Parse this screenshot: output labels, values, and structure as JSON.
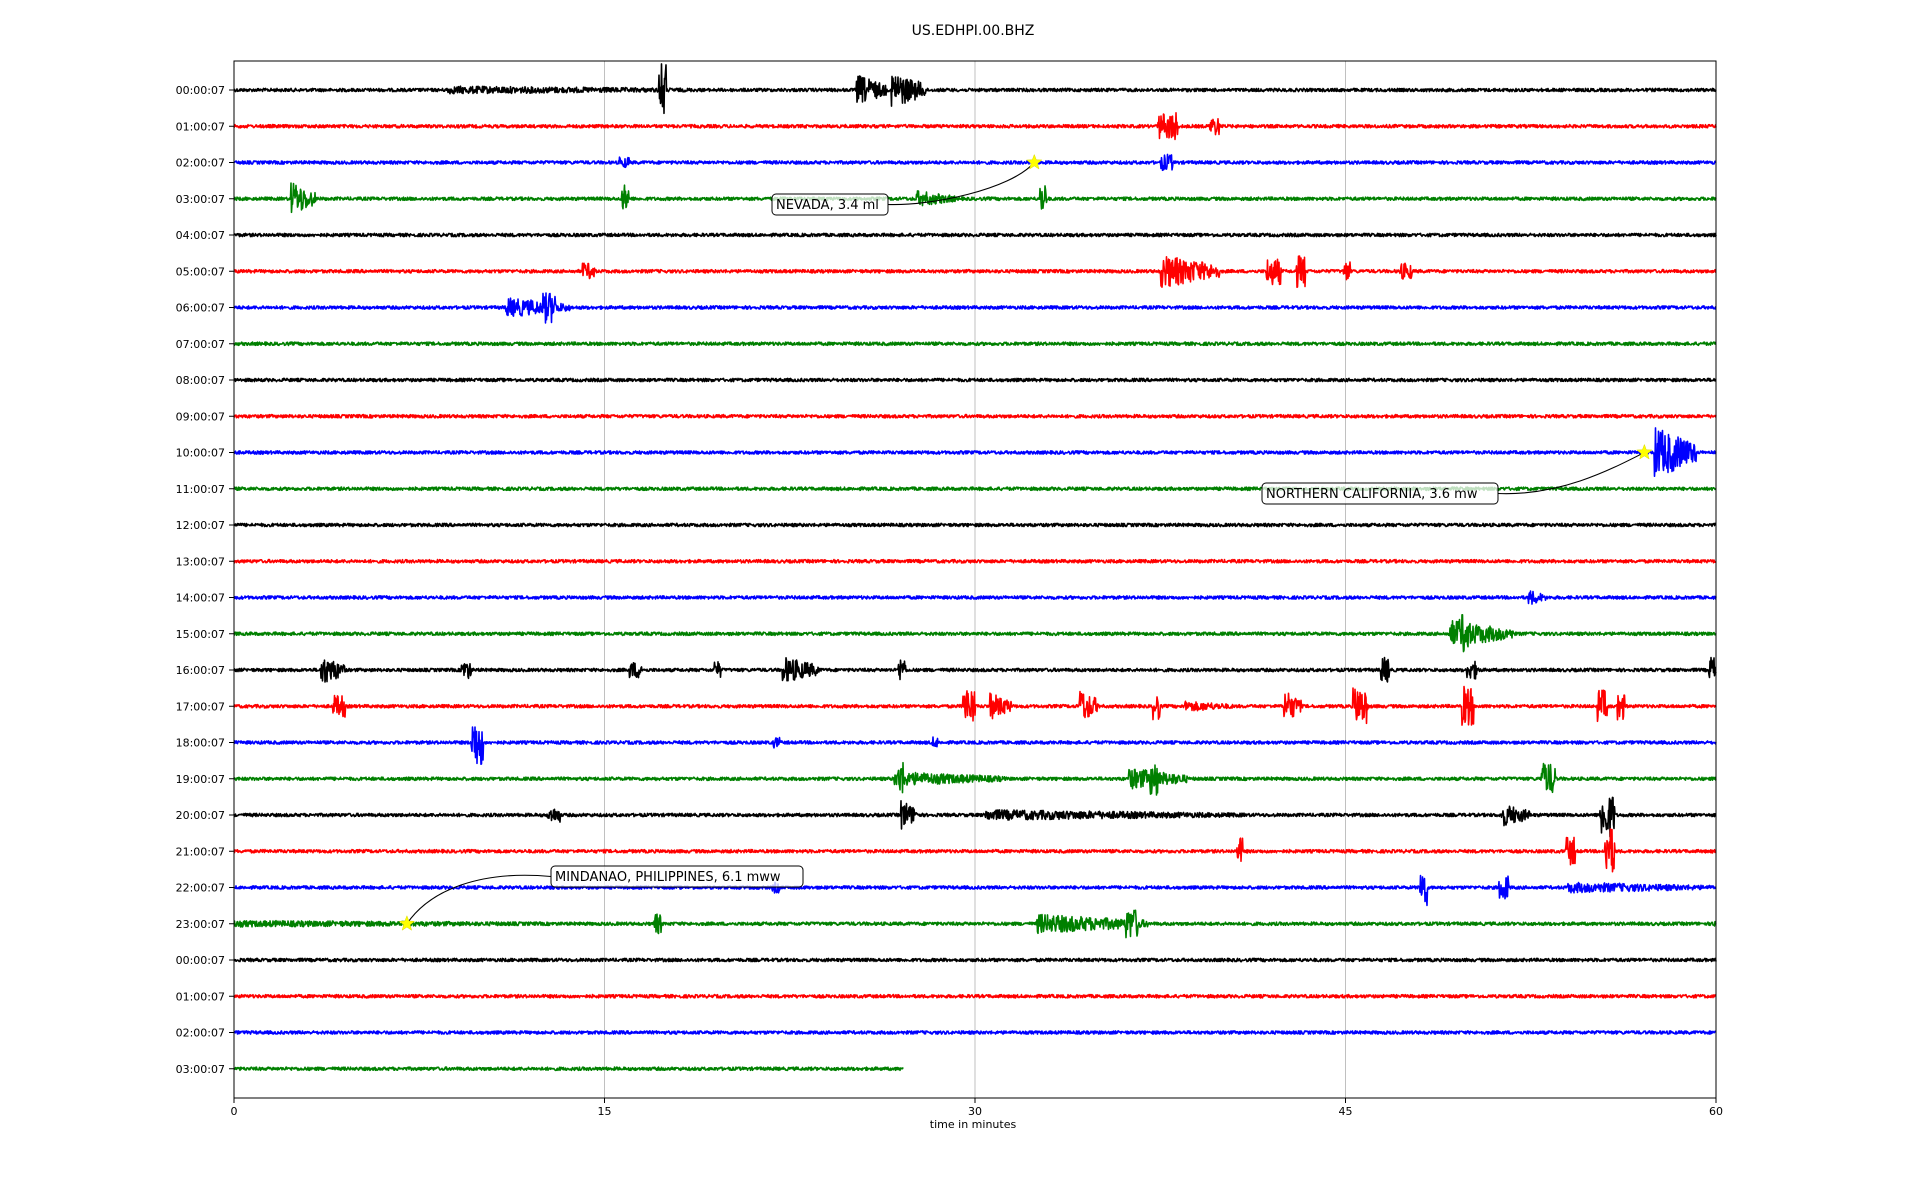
{
  "chart_data": {
    "type": "line",
    "title": "US.EDHPI.00.BHZ",
    "xlabel": "time in minutes",
    "xlim": [
      0,
      60
    ],
    "x_ticks": [
      0,
      15,
      30,
      45,
      60
    ],
    "grid": "vertical",
    "row_labels": [
      "00:00:07",
      "01:00:07",
      "02:00:07",
      "03:00:07",
      "04:00:07",
      "05:00:07",
      "06:00:07",
      "07:00:07",
      "08:00:07",
      "09:00:07",
      "10:00:07",
      "11:00:07",
      "12:00:07",
      "13:00:07",
      "14:00:07",
      "15:00:07",
      "16:00:07",
      "17:00:07",
      "18:00:07",
      "19:00:07",
      "20:00:07",
      "21:00:07",
      "22:00:07",
      "23:00:07",
      "00:00:07",
      "01:00:07",
      "02:00:07",
      "03:00:07"
    ],
    "colors": [
      "#000000",
      "#ff0000",
      "#0000ff",
      "#008000"
    ],
    "trace_end_minutes": [
      60,
      60,
      60,
      60,
      60,
      60,
      60,
      60,
      60,
      60,
      60,
      60,
      60,
      60,
      60,
      60,
      60,
      60,
      60,
      60,
      60,
      60,
      60,
      60,
      60,
      60,
      60,
      27.1
    ],
    "bursts": [
      {
        "row": 0,
        "t": 8.6,
        "dur": 11.5,
        "amp": 0.22
      },
      {
        "row": 0,
        "t": 17.2,
        "dur": 0.3,
        "amp": 1.5
      },
      {
        "row": 0,
        "t": 25.2,
        "dur": 1.2,
        "amp": 0.85
      },
      {
        "row": 0,
        "t": 26.6,
        "dur": 1.4,
        "amp": 1.0
      },
      {
        "row": 1,
        "t": 37.4,
        "dur": 0.6,
        "amp": 0.7
      },
      {
        "row": 1,
        "t": 37.9,
        "dur": 0.3,
        "amp": 0.85
      },
      {
        "row": 1,
        "t": 39.5,
        "dur": 0.4,
        "amp": 0.5
      },
      {
        "row": 2,
        "t": 15.6,
        "dur": 0.4,
        "amp": 0.3
      },
      {
        "row": 2,
        "t": 37.5,
        "dur": 0.5,
        "amp": 0.45
      },
      {
        "row": 3,
        "t": 2.3,
        "dur": 1.0,
        "amp": 0.95
      },
      {
        "row": 3,
        "t": 15.7,
        "dur": 0.3,
        "amp": 0.75
      },
      {
        "row": 3,
        "t": 27.6,
        "dur": 1.6,
        "amp": 0.45
      },
      {
        "row": 3,
        "t": 32.6,
        "dur": 0.3,
        "amp": 0.8
      },
      {
        "row": 5,
        "t": 14.1,
        "dur": 0.5,
        "amp": 0.45
      },
      {
        "row": 5,
        "t": 37.5,
        "dur": 2.4,
        "amp": 0.95
      },
      {
        "row": 5,
        "t": 41.8,
        "dur": 0.6,
        "amp": 0.75
      },
      {
        "row": 5,
        "t": 43.0,
        "dur": 0.4,
        "amp": 0.9
      },
      {
        "row": 5,
        "t": 44.9,
        "dur": 0.3,
        "amp": 0.55
      },
      {
        "row": 5,
        "t": 47.2,
        "dur": 0.5,
        "amp": 0.45
      },
      {
        "row": 6,
        "t": 11.0,
        "dur": 2.6,
        "amp": 0.55
      },
      {
        "row": 6,
        "t": 12.5,
        "dur": 0.5,
        "amp": 0.85
      },
      {
        "row": 10,
        "t": 57.5,
        "dur": 1.7,
        "amp": 1.45
      },
      {
        "row": 14,
        "t": 52.4,
        "dur": 0.7,
        "amp": 0.45
      },
      {
        "row": 15,
        "t": 49.2,
        "dur": 2.6,
        "amp": 0.75
      },
      {
        "row": 15,
        "t": 49.6,
        "dur": 0.4,
        "amp": 1.1
      },
      {
        "row": 16,
        "t": 3.5,
        "dur": 1.0,
        "amp": 0.85
      },
      {
        "row": 16,
        "t": 9.2,
        "dur": 0.4,
        "amp": 0.5
      },
      {
        "row": 16,
        "t": 16.0,
        "dur": 0.5,
        "amp": 0.45
      },
      {
        "row": 16,
        "t": 19.4,
        "dur": 0.3,
        "amp": 0.45
      },
      {
        "row": 16,
        "t": 22.2,
        "dur": 1.5,
        "amp": 0.75
      },
      {
        "row": 16,
        "t": 26.9,
        "dur": 0.3,
        "amp": 0.65
      },
      {
        "row": 16,
        "t": 46.4,
        "dur": 0.4,
        "amp": 0.7
      },
      {
        "row": 16,
        "t": 49.9,
        "dur": 0.5,
        "amp": 0.5
      },
      {
        "row": 16,
        "t": 59.7,
        "dur": 0.3,
        "amp": 0.7
      },
      {
        "row": 17,
        "t": 4.0,
        "dur": 0.5,
        "amp": 0.6
      },
      {
        "row": 17,
        "t": 29.5,
        "dur": 0.5,
        "amp": 1.0
      },
      {
        "row": 17,
        "t": 30.6,
        "dur": 0.9,
        "amp": 0.75
      },
      {
        "row": 17,
        "t": 34.2,
        "dur": 0.8,
        "amp": 1.0
      },
      {
        "row": 17,
        "t": 37.2,
        "dur": 0.3,
        "amp": 0.75
      },
      {
        "row": 17,
        "t": 38.5,
        "dur": 2.0,
        "amp": 0.3
      },
      {
        "row": 17,
        "t": 42.5,
        "dur": 0.7,
        "amp": 0.95
      },
      {
        "row": 17,
        "t": 45.3,
        "dur": 0.6,
        "amp": 1.0
      },
      {
        "row": 17,
        "t": 49.7,
        "dur": 0.5,
        "amp": 1.1
      },
      {
        "row": 17,
        "t": 55.2,
        "dur": 0.4,
        "amp": 0.9
      },
      {
        "row": 17,
        "t": 56.0,
        "dur": 0.3,
        "amp": 0.75
      },
      {
        "row": 18,
        "t": 9.6,
        "dur": 0.5,
        "amp": 1.3
      },
      {
        "row": 18,
        "t": 21.8,
        "dur": 0.3,
        "amp": 0.3
      },
      {
        "row": 18,
        "t": 28.2,
        "dur": 0.3,
        "amp": 0.3
      },
      {
        "row": 19,
        "t": 26.7,
        "dur": 4.5,
        "amp": 0.4
      },
      {
        "row": 19,
        "t": 26.9,
        "dur": 0.3,
        "amp": 0.95
      },
      {
        "row": 19,
        "t": 36.2,
        "dur": 2.4,
        "amp": 0.6
      },
      {
        "row": 19,
        "t": 37.1,
        "dur": 0.3,
        "amp": 1.0
      },
      {
        "row": 19,
        "t": 52.9,
        "dur": 0.6,
        "amp": 0.85
      },
      {
        "row": 20,
        "t": 12.7,
        "dur": 0.5,
        "amp": 0.4
      },
      {
        "row": 20,
        "t": 27.0,
        "dur": 0.7,
        "amp": 0.85
      },
      {
        "row": 20,
        "t": 30.4,
        "dur": 10.5,
        "amp": 0.3
      },
      {
        "row": 20,
        "t": 51.3,
        "dur": 1.2,
        "amp": 0.65
      },
      {
        "row": 20,
        "t": 55.3,
        "dur": 0.6,
        "amp": 1.2
      },
      {
        "row": 21,
        "t": 40.6,
        "dur": 0.3,
        "amp": 0.75
      },
      {
        "row": 21,
        "t": 53.9,
        "dur": 0.4,
        "amp": 0.8
      },
      {
        "row": 21,
        "t": 55.5,
        "dur": 0.4,
        "amp": 1.3
      },
      {
        "row": 22,
        "t": 21.8,
        "dur": 0.3,
        "amp": 0.3
      },
      {
        "row": 22,
        "t": 48.0,
        "dur": 0.3,
        "amp": 1.05
      },
      {
        "row": 22,
        "t": 51.2,
        "dur": 0.4,
        "amp": 0.7
      },
      {
        "row": 22,
        "t": 54.0,
        "dur": 6.0,
        "amp": 0.3
      },
      {
        "row": 23,
        "t": 0.0,
        "dur": 17.0,
        "amp": 0.18
      },
      {
        "row": 23,
        "t": 17.0,
        "dur": 0.3,
        "amp": 0.55
      },
      {
        "row": 23,
        "t": 32.5,
        "dur": 4.5,
        "amp": 0.55
      },
      {
        "row": 23,
        "t": 36.1,
        "dur": 0.5,
        "amp": 0.85
      },
      {
        "row": 23,
        "t": 59.9,
        "dur": 0.1,
        "amp": 0.6
      }
    ],
    "annotations": [
      {
        "label": "NEVADA, 3.4 ml",
        "row": 2,
        "minute": 32.4
      },
      {
        "label": "NORTHERN CALIFORNIA, 3.6 mw",
        "row": 10,
        "minute": 57.1
      },
      {
        "label": "MINDANAO, PHILIPPINES, 6.1 mww",
        "row": 23,
        "minute": 7.0
      }
    ],
    "marker_color": "#ffff00"
  }
}
